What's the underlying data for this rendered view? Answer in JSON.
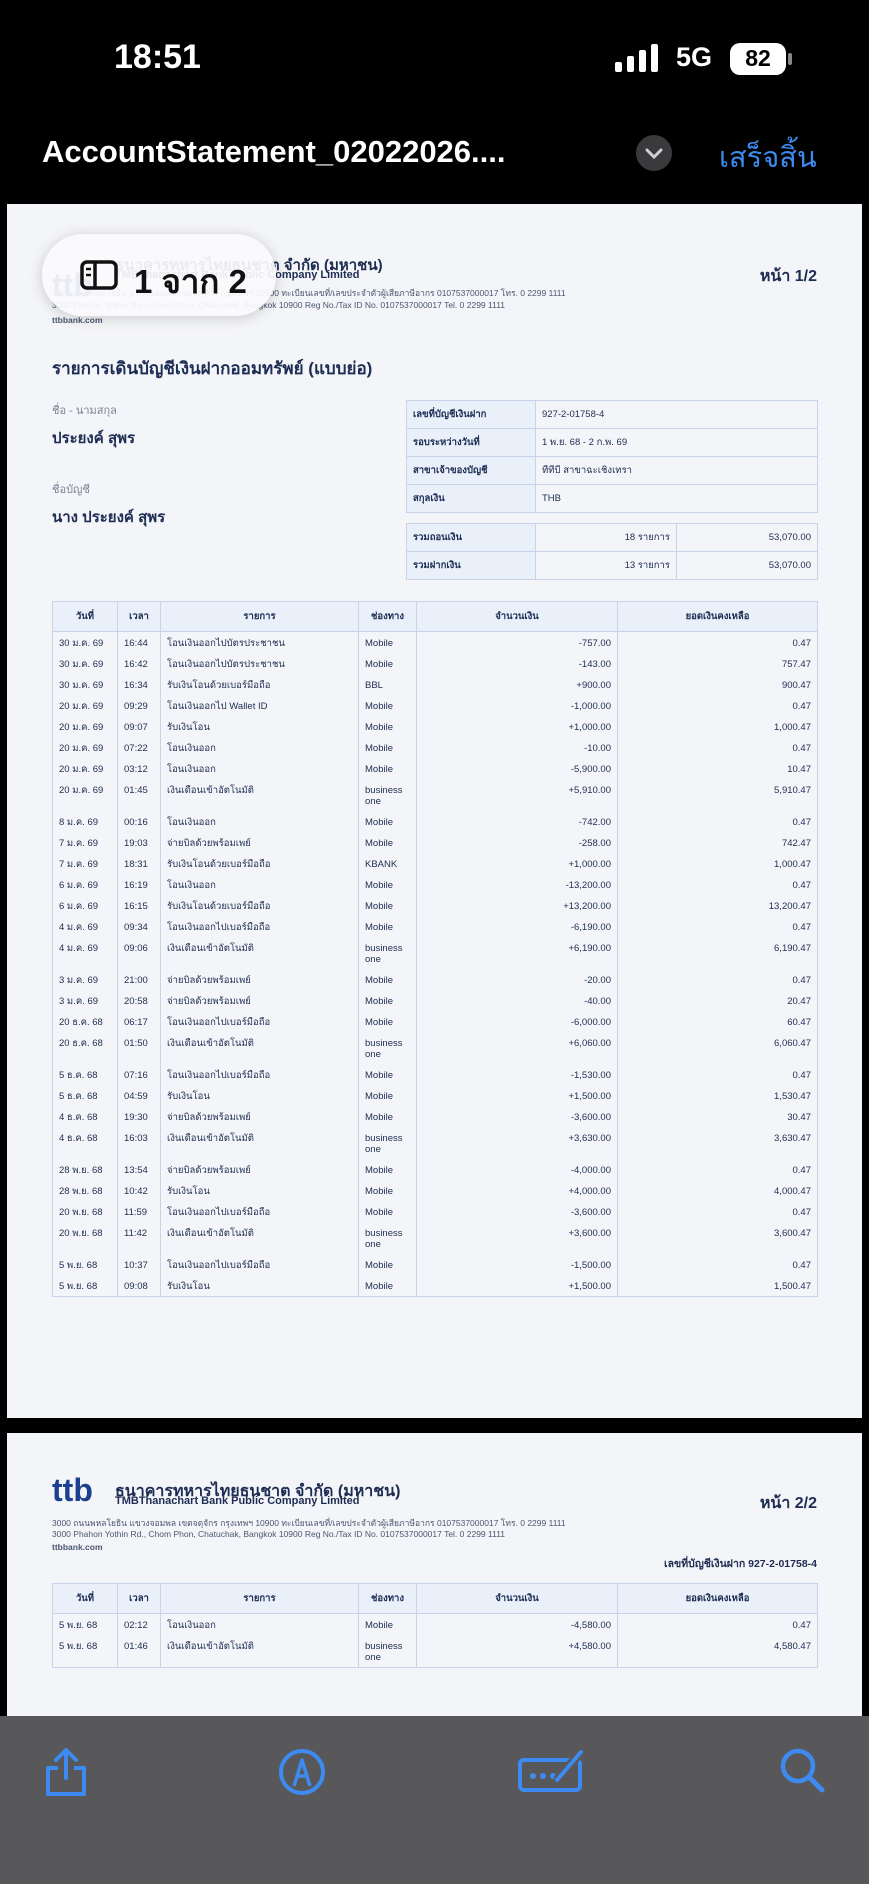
{
  "status_bar": {
    "time": "18:51",
    "network": "5G",
    "battery": "82"
  },
  "nav": {
    "title": "AccountStatement_02022026....",
    "done": "เสร็จสิ้น"
  },
  "page_indicator": "1 จาก 2",
  "bank": {
    "name_th": "ธนาคารทหารไทยธนชาต จำกัด (มหาชน)",
    "name_en": "TMBThanachart Bank Public Company Limited",
    "address_th": "3000 ถนนพหลโยธิน แขวงจอมพล เขตจตุจักร กรุงเทพฯ 10900 ทะเบียนเลขที่/เลขประจำตัวผู้เสียภาษีอากร 0107537000017 โทร. 0 2299 1111",
    "address_en": "3000 Phahon Yothin Rd., Chom Phon, Chatuchak, Bangkok 10900 Reg No./Tax ID No. 0107537000017 Tel. 0 2299 1111",
    "website": "ttbbank.com"
  },
  "statement": {
    "title": "รายการเดินบัญชีเงินฝากออมทรัพย์ (แบบย่อ)",
    "name_label": "ชื่อ - นามสกุล",
    "name": "ประยงค์ สุพร",
    "account_name_label": "ชื่อบัญชี",
    "account_name": "นาง ประยงค์ สุพร",
    "info": [
      [
        "เลขที่บัญชีเงินฝาก",
        "927-2-01758-4"
      ],
      [
        "รอบระหว่างวันที่",
        "1 พ.ย. 68 - 2 ก.พ. 69"
      ],
      [
        "สาขาเจ้าของบัญชี",
        "ทีทีบี สาขาฉะเชิงเทรา"
      ],
      [
        "สกุลเงิน",
        "THB"
      ]
    ],
    "summary": [
      [
        "รวมถอนเงิน",
        "18 รายการ",
        "53,070.00"
      ],
      [
        "รวมฝากเงิน",
        "13 รายการ",
        "53,070.00"
      ]
    ]
  },
  "table_columns": [
    "วันที่",
    "เวลา",
    "รายการ",
    "ช่องทาง",
    "จำนวนเงิน",
    "ยอดเงินคงเหลือ"
  ],
  "pages": [
    {
      "page_number": "หน้า 1/2",
      "rows": [
        [
          "30 ม.ค. 69",
          "16:44",
          "โอนเงินออกไปบัตรประชาชน",
          "Mobile",
          "-757.00",
          "0.47"
        ],
        [
          "30 ม.ค. 69",
          "16:42",
          "โอนเงินออกไปบัตรประชาชน",
          "Mobile",
          "-143.00",
          "757.47"
        ],
        [
          "30 ม.ค. 69",
          "16:34",
          "รับเงินโอนด้วยเบอร์มือถือ",
          "BBL",
          "+900.00",
          "900.47"
        ],
        [
          "20 ม.ค. 69",
          "09:29",
          "โอนเงินออกไป Wallet ID",
          "Mobile",
          "-1,000.00",
          "0.47"
        ],
        [
          "20 ม.ค. 69",
          "09:07",
          "รับเงินโอน",
          "Mobile",
          "+1,000.00",
          "1,000.47"
        ],
        [
          "20 ม.ค. 69",
          "07:22",
          "โอนเงินออก",
          "Mobile",
          "-10.00",
          "0.47"
        ],
        [
          "20 ม.ค. 69",
          "03:12",
          "โอนเงินออก",
          "Mobile",
          "-5,900.00",
          "10.47"
        ],
        [
          "20 ม.ค. 69",
          "01:45",
          "เงินเดือนเข้าอัตโนมัติ",
          "business one",
          "+5,910.00",
          "5,910.47"
        ],
        [
          "8 ม.ค. 69",
          "00:16",
          "โอนเงินออก",
          "Mobile",
          "-742.00",
          "0.47"
        ],
        [
          "7 ม.ค. 69",
          "19:03",
          "จ่ายบิลด้วยพร้อมเพย์",
          "Mobile",
          "-258.00",
          "742.47"
        ],
        [
          "7 ม.ค. 69",
          "18:31",
          "รับเงินโอนด้วยเบอร์มือถือ",
          "KBANK",
          "+1,000.00",
          "1,000.47"
        ],
        [
          "6 ม.ค. 69",
          "16:19",
          "โอนเงินออก",
          "Mobile",
          "-13,200.00",
          "0.47"
        ],
        [
          "6 ม.ค. 69",
          "16:15",
          "รับเงินโอนด้วยเบอร์มือถือ",
          "Mobile",
          "+13,200.00",
          "13,200.47"
        ],
        [
          "4 ม.ค. 69",
          "09:34",
          "โอนเงินออกไปเบอร์มือถือ",
          "Mobile",
          "-6,190.00",
          "0.47"
        ],
        [
          "4 ม.ค. 69",
          "09:06",
          "เงินเดือนเข้าอัตโนมัติ",
          "business one",
          "+6,190.00",
          "6,190.47"
        ],
        [
          "3 ม.ค. 69",
          "21:00",
          "จ่ายบิลด้วยพร้อมเพย์",
          "Mobile",
          "-20.00",
          "0.47"
        ],
        [
          "3 ม.ค. 69",
          "20:58",
          "จ่ายบิลด้วยพร้อมเพย์",
          "Mobile",
          "-40.00",
          "20.47"
        ],
        [
          "20 ธ.ค. 68",
          "06:17",
          "โอนเงินออกไปเบอร์มือถือ",
          "Mobile",
          "-6,000.00",
          "60.47"
        ],
        [
          "20 ธ.ค. 68",
          "01:50",
          "เงินเดือนเข้าอัตโนมัติ",
          "business one",
          "+6,060.00",
          "6,060.47"
        ],
        [
          "5 ธ.ค. 68",
          "07:16",
          "โอนเงินออกไปเบอร์มือถือ",
          "Mobile",
          "-1,530.00",
          "0.47"
        ],
        [
          "5 ธ.ค. 68",
          "04:59",
          "รับเงินโอน",
          "Mobile",
          "+1,500.00",
          "1,530.47"
        ],
        [
          "4 ธ.ค. 68",
          "19:30",
          "จ่ายบิลด้วยพร้อมเพย์",
          "Mobile",
          "-3,600.00",
          "30.47"
        ],
        [
          "4 ธ.ค. 68",
          "16:03",
          "เงินเดือนเข้าอัตโนมัติ",
          "business one",
          "+3,630.00",
          "3,630.47"
        ],
        [
          "28 พ.ย. 68",
          "13:54",
          "จ่ายบิลด้วยพร้อมเพย์",
          "Mobile",
          "-4,000.00",
          "0.47"
        ],
        [
          "28 พ.ย. 68",
          "10:42",
          "รับเงินโอน",
          "Mobile",
          "+4,000.00",
          "4,000.47"
        ],
        [
          "20 พ.ย. 68",
          "11:59",
          "โอนเงินออกไปเบอร์มือถือ",
          "Mobile",
          "-3,600.00",
          "0.47"
        ],
        [
          "20 พ.ย. 68",
          "11:42",
          "เงินเดือนเข้าอัตโนมัติ",
          "business one",
          "+3,600.00",
          "3,600.47"
        ],
        [
          "5 พ.ย. 68",
          "10:37",
          "โอนเงินออกไปเบอร์มือถือ",
          "Mobile",
          "-1,500.00",
          "0.47"
        ],
        [
          "5 พ.ย. 68",
          "09:08",
          "รับเงินโอน",
          "Mobile",
          "+1,500.00",
          "1,500.47"
        ]
      ]
    },
    {
      "page_number": "หน้า 2/2",
      "account_line": "เลขที่บัญชีเงินฝาก 927-2-01758-4",
      "rows": [
        [
          "5 พ.ย. 68",
          "02:12",
          "โอนเงินออก",
          "Mobile",
          "-4,580.00",
          "0.47"
        ],
        [
          "5 พ.ย. 68",
          "01:46",
          "เงินเดือนเข้าอัตโนมัติ",
          "business one",
          "+4,580.00",
          "4,580.47"
        ]
      ]
    }
  ]
}
